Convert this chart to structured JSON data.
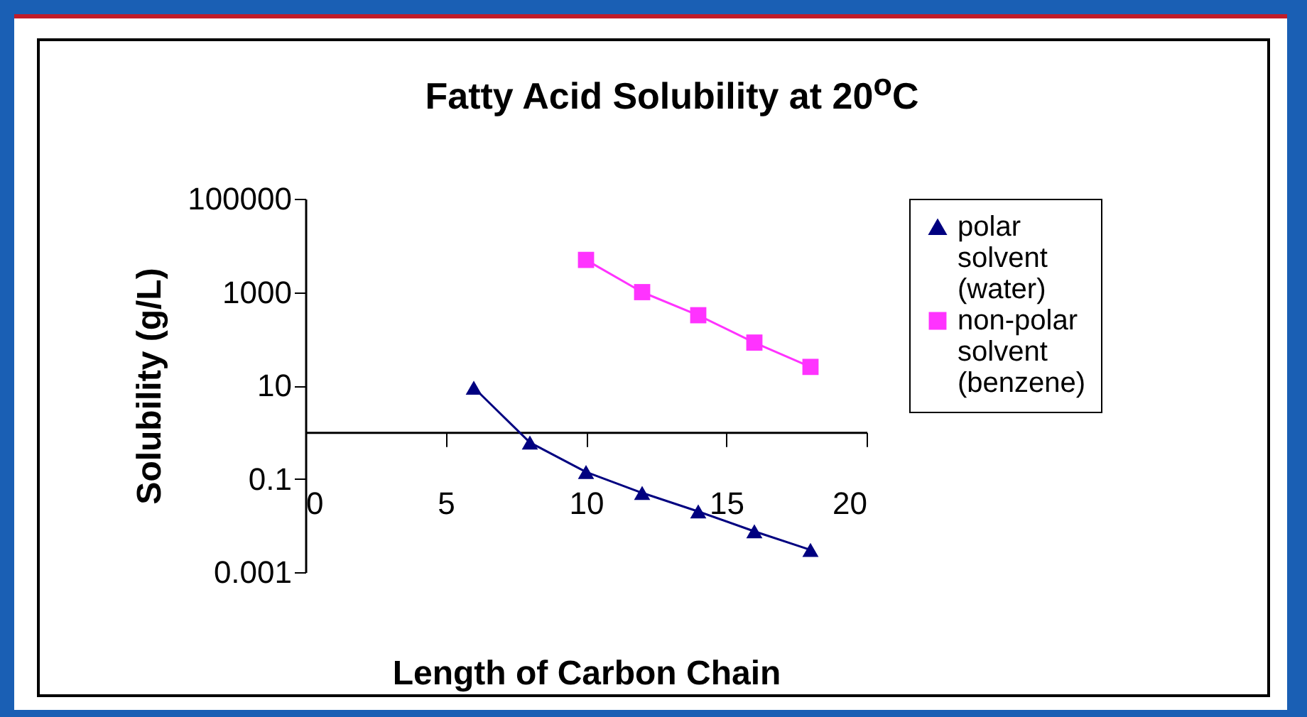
{
  "chart_data": {
    "type": "line",
    "title": "Fatty Acid Solubility at 20$^{o}$C",
    "xlabel": "Length of Carbon Chain",
    "ylabel": "Solubility (g/L)",
    "log": "y",
    "xlim": [
      0,
      20
    ],
    "xticks": [
      0,
      5,
      10,
      15,
      20
    ],
    "ylim": [
      0.001,
      100000
    ],
    "yticks": [
      0.001,
      0.1,
      10,
      1000,
      100000
    ],
    "grid": false,
    "legend": "right",
    "series": [
      {
        "name": "polar solvent (water)",
        "color": "#000080",
        "marker": "triangle",
        "x": [
          6,
          8,
          10,
          12,
          14,
          16,
          18
        ],
        "values": [
          9,
          0.6,
          0.14,
          0.05,
          0.02,
          0.0075,
          0.003
        ]
      },
      {
        "name": "non-polar solvent (benzene)",
        "color": "#ff33ff",
        "marker": "square",
        "x": [
          10,
          12,
          14,
          16,
          18
        ],
        "values": [
          4900,
          1000,
          320,
          83,
          25
        ]
      }
    ]
  }
}
